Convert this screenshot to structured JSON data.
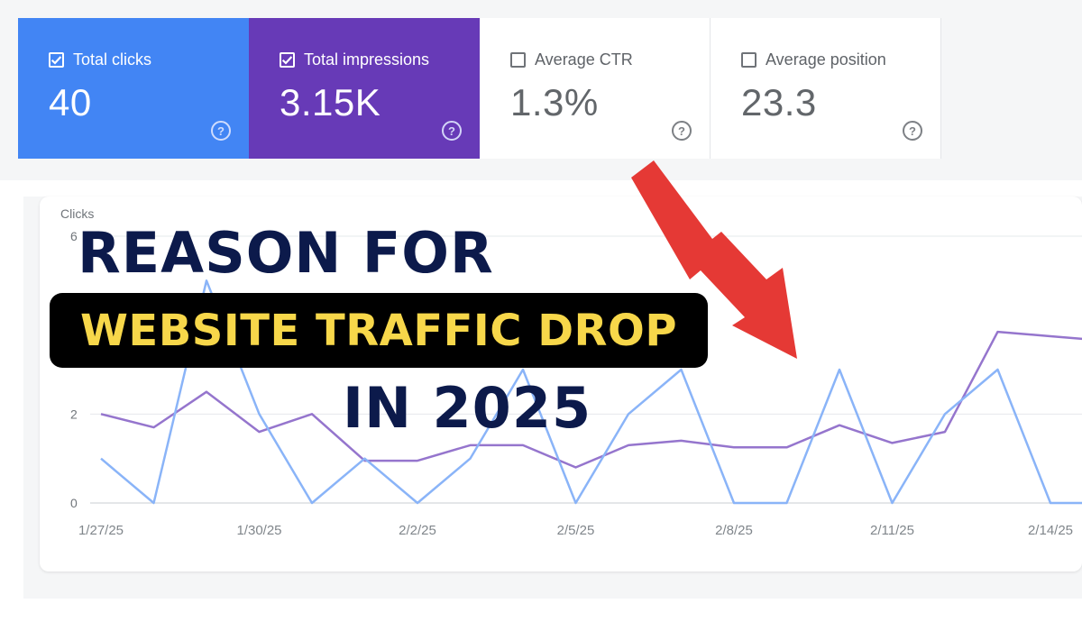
{
  "metrics": [
    {
      "label": "Total clicks",
      "value": "40",
      "checked": true
    },
    {
      "label": "Total impressions",
      "value": "3.15K",
      "checked": true
    },
    {
      "label": "Average CTR",
      "value": "1.3%",
      "checked": false
    },
    {
      "label": "Average position",
      "value": "23.3",
      "checked": false
    }
  ],
  "headline": {
    "line1": "REASON FOR",
    "line2": "WEBSITE TRAFFIC DROP",
    "line3": "IN 2025"
  },
  "colors": {
    "clicks": "#4285f4",
    "impressions": "#673ab7",
    "headline_dark": "#0c1a4b",
    "headline_yellow": "#f7d74a",
    "arrow": "#e53935"
  },
  "chart_data": {
    "type": "line",
    "ylabel": "Clicks",
    "yticks": [
      0,
      2,
      6
    ],
    "ylim": [
      0,
      6
    ],
    "x": [
      "1/27/25",
      "1/28/25",
      "1/29/25",
      "1/30/25",
      "1/31/25",
      "2/1/25",
      "2/2/25",
      "2/3/25",
      "2/4/25",
      "2/5/25",
      "2/6/25",
      "2/7/25",
      "2/8/25",
      "2/9/25",
      "2/10/25",
      "2/11/25",
      "2/12/25",
      "2/13/25",
      "2/14/25",
      "2/15/25"
    ],
    "xtick_labels": [
      "1/27/25",
      "1/30/25",
      "2/2/25",
      "2/5/25",
      "2/8/25",
      "2/11/25",
      "2/14/25"
    ],
    "grid": true,
    "series": [
      {
        "key": "clicks",
        "values": [
          1,
          0,
          5,
          2,
          0,
          1,
          0,
          1,
          3,
          0,
          2,
          3,
          0,
          0,
          3,
          0,
          2,
          3,
          0,
          0
        ]
      },
      {
        "key": "impressions",
        "values": [
          2,
          1.7,
          2.5,
          1.6,
          2,
          0.95,
          0.95,
          1.3,
          1.3,
          0.8,
          1.3,
          1.4,
          1.25,
          1.25,
          1.75,
          1.35,
          1.6,
          3.85,
          3.75,
          3.65
        ]
      }
    ]
  }
}
